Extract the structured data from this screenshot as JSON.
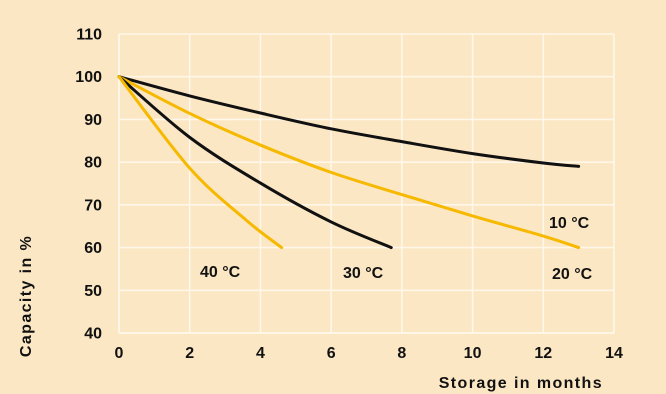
{
  "chart_data": {
    "type": "line",
    "xlabel": "Storage in months",
    "ylabel": "Capacity in %",
    "xlim": [
      0,
      14
    ],
    "ylim": [
      40,
      110
    ],
    "x_ticks": [
      "0",
      "2",
      "4",
      "6",
      "8",
      "10",
      "12",
      "14"
    ],
    "y_ticks": [
      "40",
      "50",
      "60",
      "70",
      "80",
      "90",
      "100",
      "110"
    ],
    "grid": true,
    "series": [
      {
        "name": "10 °C",
        "x": [
          0,
          2,
          4,
          6,
          8,
          10,
          12,
          13
        ],
        "y": [
          100,
          95.5,
          91.5,
          87.8,
          84.8,
          82.0,
          79.8,
          79.0
        ]
      },
      {
        "name": "20 °C",
        "x": [
          0,
          2,
          4,
          6,
          8,
          10,
          12,
          13
        ],
        "y": [
          100,
          91.4,
          84.0,
          77.6,
          72.4,
          67.4,
          62.7,
          60.0
        ]
      },
      {
        "name": "30 °C",
        "x": [
          0,
          2,
          4,
          6,
          7.7
        ],
        "y": [
          100,
          85.8,
          75.1,
          66.0,
          60.0
        ]
      },
      {
        "name": "40 °C",
        "x": [
          0,
          2,
          3.6,
          4.6
        ],
        "y": [
          100,
          78.6,
          66.4,
          60.0
        ]
      }
    ],
    "colors": {
      "background": "#fbe7c4",
      "plot_background": "#fbe7c4",
      "grid": "#fff7e9",
      "axis": "#111111",
      "black_series": "#111111",
      "yellow_series": "#f6b900"
    }
  }
}
